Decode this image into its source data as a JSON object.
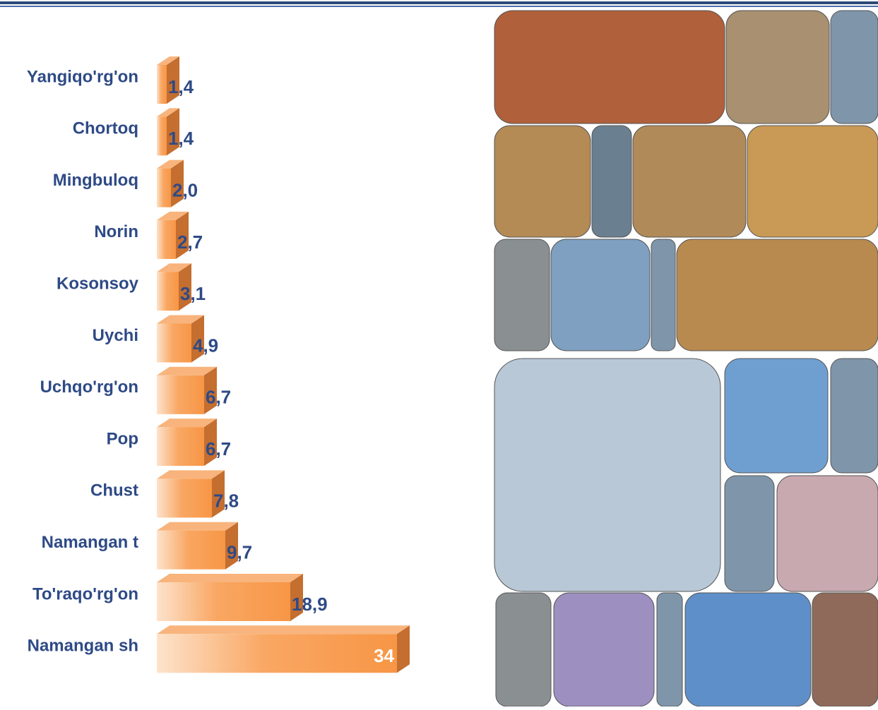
{
  "chart_data": {
    "type": "bar3d",
    "categories": [
      "Yangiqo'rg'on",
      "Chortoq",
      "Mingbuloq",
      "Norin",
      "Kosonsoy",
      "Uychi",
      "Uchqo'rg'on",
      "Pop",
      "Chust",
      "Namangan t",
      "To'raqo'rg'on",
      "Namangan sh"
    ],
    "values": [
      1.4,
      1.4,
      2.0,
      2.7,
      3.1,
      4.9,
      6.7,
      6.7,
      7.8,
      9.7,
      18.9,
      34
    ],
    "value_labels": [
      "1,4",
      "1,4",
      "2,0",
      "2,7",
      "3,1",
      "4,9",
      "6,7",
      "6,7",
      "7,8",
      "9,7",
      "18,9",
      "34"
    ],
    "color": "#f79646"
  }
}
